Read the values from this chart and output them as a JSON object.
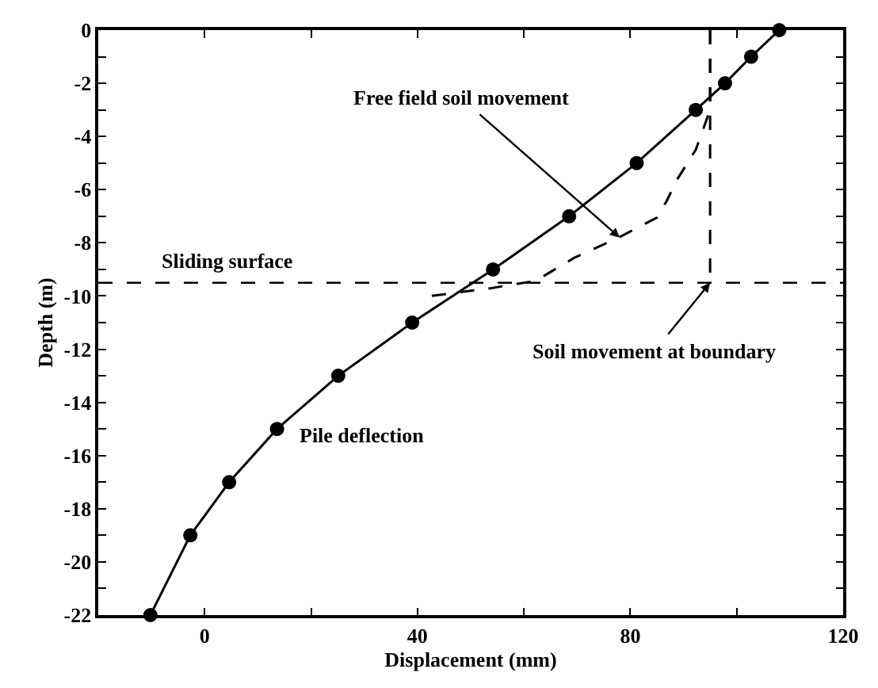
{
  "chart_data": {
    "type": "line",
    "xlabel": "Displacement (mm)",
    "ylabel": "Depth (m)",
    "xlim": [
      -20,
      120
    ],
    "ylim": [
      -22,
      0
    ],
    "xticks": [
      {
        "value": -20,
        "label": null
      },
      0,
      {
        "value": 20,
        "label": null
      },
      40,
      {
        "value": 60,
        "label": null
      },
      80,
      {
        "value": 100,
        "label": null
      },
      120
    ],
    "yticks": [
      0,
      {
        "value": -1,
        "label": null
      },
      -2,
      {
        "value": -3,
        "label": null
      },
      -4,
      {
        "value": -5,
        "label": null
      },
      -6,
      {
        "value": -7,
        "label": null
      },
      -8,
      {
        "value": -9,
        "label": null
      },
      -10,
      {
        "value": -11,
        "label": null
      },
      -12,
      {
        "value": -13,
        "label": null
      },
      -14,
      {
        "value": -15,
        "label": null
      },
      -16,
      {
        "value": -17,
        "label": null
      },
      -18,
      {
        "value": -19,
        "label": null
      },
      -20,
      {
        "value": -21,
        "label": null
      },
      -22
    ],
    "legend": false,
    "series": [
      {
        "name": "Pile deflection",
        "color": "#000000",
        "marker": "circle",
        "line_style": "solid",
        "x": [
          108,
          102.7,
          97.8,
          92.3,
          81.2,
          68.5,
          54.2,
          39,
          25.1,
          13.6,
          4.6,
          -2.7,
          -10.2
        ],
        "values": [
          0,
          -1,
          -2,
          -3,
          -5,
          -7,
          -9,
          -11,
          -13,
          -15,
          -17,
          -19,
          -22
        ]
      },
      {
        "color": "#000000",
        "marker": "none",
        "line_style": "dashed",
        "x": [
          95,
          95,
          92.3,
          88.7,
          86.9,
          85,
          77.8,
          69.5,
          62.2,
          53.9,
          42.5
        ],
        "values": [
          0,
          -3,
          -4.5,
          -5.65,
          -6.4,
          -7.05,
          -7.8,
          -8.56,
          -9.43,
          -9.7,
          -10
        ]
      },
      {
        "color": "#000000",
        "marker": "none",
        "line_style": "dashed",
        "x": [
          95,
          95
        ],
        "values": [
          0,
          -9.5
        ]
      }
    ],
    "ref_lines": [
      {
        "axis": "y",
        "value": -9.5,
        "label": "Sliding surface",
        "color": "#000000",
        "line_style": "dashed"
      }
    ],
    "annotations": [
      {
        "text": "Free field soil movement",
        "x": 78,
        "y": -7.8
      },
      {
        "text": "Soil movement at boundary",
        "x": 95,
        "y": -9.5
      }
    ]
  }
}
